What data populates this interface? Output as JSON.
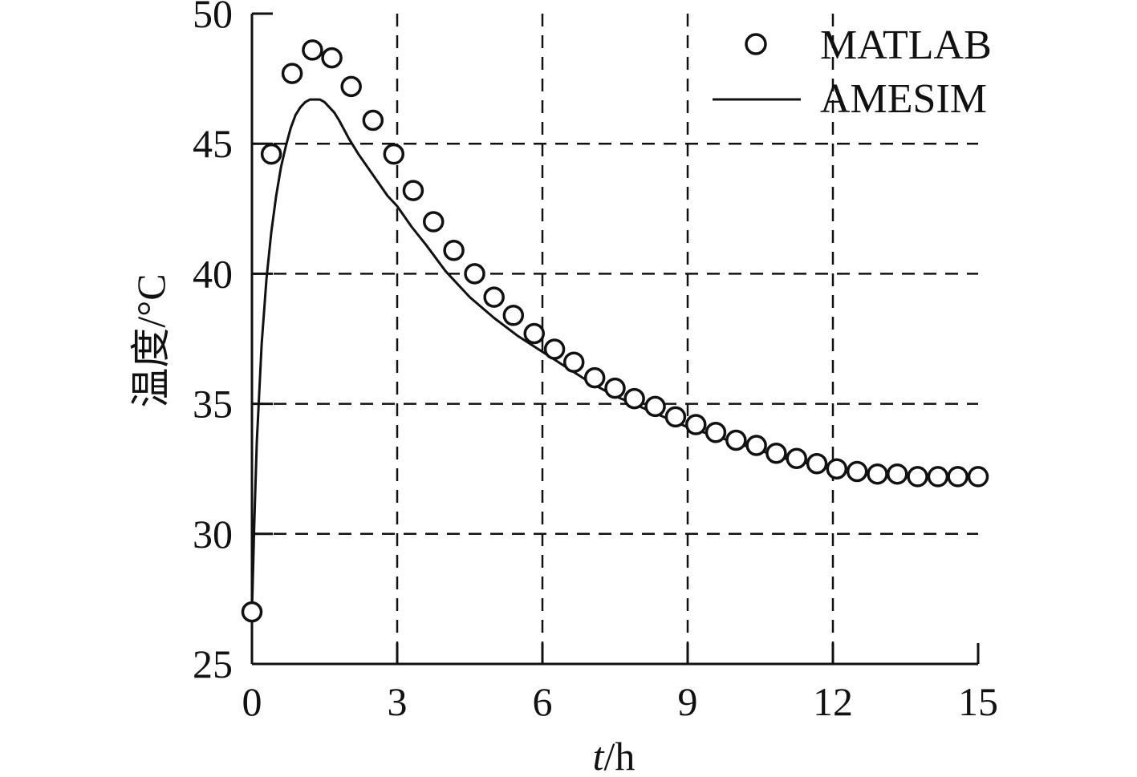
{
  "chart_data": {
    "type": "line",
    "title": "",
    "xlabel": {
      "var": "t",
      "unit": "/h"
    },
    "ylabel": "温度/°C",
    "xlim": [
      0,
      15
    ],
    "ylim": [
      25,
      50
    ],
    "xticks": [
      0,
      3,
      6,
      9,
      12,
      15
    ],
    "yticks": [
      25,
      30,
      35,
      40,
      45,
      50
    ],
    "grid": "dashed",
    "legend_position": "top-right",
    "colors": {
      "ink": "#111111",
      "background": "#ffffff"
    },
    "series": [
      {
        "name": "MATLAB",
        "type": "scatter",
        "marker": "open-circle",
        "x": [
          0,
          0.4,
          0.83,
          1.25,
          1.65,
          2.05,
          2.5,
          2.93,
          3.33,
          3.75,
          4.17,
          4.6,
          5.0,
          5.4,
          5.83,
          6.25,
          6.65,
          7.08,
          7.5,
          7.9,
          8.33,
          8.75,
          9.17,
          9.58,
          10.0,
          10.42,
          10.83,
          11.25,
          11.67,
          12.08,
          12.5,
          12.92,
          13.33,
          13.75,
          14.17,
          14.58,
          15.0
        ],
        "y": [
          27.0,
          44.6,
          47.7,
          48.6,
          48.3,
          47.2,
          45.9,
          44.6,
          43.2,
          42.0,
          40.9,
          40.0,
          39.1,
          38.4,
          37.7,
          37.1,
          36.6,
          36.0,
          35.6,
          35.2,
          34.9,
          34.5,
          34.2,
          33.9,
          33.6,
          33.4,
          33.1,
          32.9,
          32.7,
          32.5,
          32.4,
          32.3,
          32.3,
          32.2,
          32.2,
          32.2,
          32.2
        ]
      },
      {
        "name": "AMESIM",
        "type": "line",
        "style": "solid",
        "x": [
          0,
          0.05,
          0.1,
          0.2,
          0.3,
          0.4,
          0.5,
          0.6,
          0.7,
          0.8,
          0.9,
          1.0,
          1.1,
          1.2,
          1.3,
          1.4,
          1.5,
          1.6,
          1.7,
          1.8,
          2.0,
          2.2,
          2.5,
          2.8,
          3.0,
          3.3,
          3.6,
          4.0,
          4.5,
          5.0,
          5.5,
          6.0,
          6.5,
          7.0,
          7.5,
          8.0,
          8.5,
          9.0,
          9.5,
          10.0,
          10.5,
          11.0,
          11.5,
          12.0,
          12.5,
          13.0,
          13.5,
          14.0,
          14.5,
          15.0
        ],
        "y": [
          27.0,
          30.5,
          33.5,
          37.3,
          39.8,
          41.6,
          43.0,
          44.1,
          44.9,
          45.6,
          46.1,
          46.4,
          46.6,
          46.7,
          46.7,
          46.7,
          46.6,
          46.4,
          46.2,
          45.9,
          45.2,
          44.6,
          43.8,
          43.0,
          42.6,
          41.8,
          41.1,
          40.1,
          39.1,
          38.3,
          37.6,
          37.0,
          36.4,
          35.8,
          35.3,
          34.9,
          34.5,
          34.1,
          33.8,
          33.5,
          33.2,
          32.9,
          32.7,
          32.5,
          32.4,
          32.3,
          32.3,
          32.2,
          32.2,
          32.2
        ]
      }
    ]
  }
}
